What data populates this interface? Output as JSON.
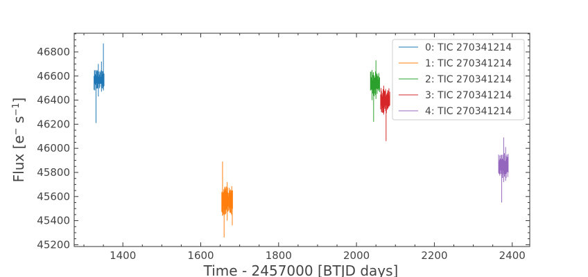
{
  "chart_data": {
    "type": "line",
    "xlabel": "Time - 2457000 [BTJD days]",
    "ylabel_main": "Flux [e",
    "ylabel_sup1": "−",
    "ylabel_mid": "s",
    "ylabel_sup2": "−1",
    "ylabel_end": "]",
    "xlim": [
      1275,
      2445
    ],
    "ylim": [
      45185,
      46955
    ],
    "xticks": [
      1400,
      1600,
      1800,
      2000,
      2200,
      2400
    ],
    "yticks": [
      45200,
      45400,
      45600,
      45800,
      46000,
      46200,
      46400,
      46600,
      46800
    ],
    "grid": false,
    "legend_position": "top-right",
    "series": [
      {
        "name": "0: TIC 270341214",
        "color": "#1f77b4",
        "x_range": [
          1326,
          1352
        ],
        "band": [
          46480,
          46650
        ],
        "spikes": [
          [
            1331,
            46210,
            46650
          ],
          [
            1337,
            46430,
            46700
          ],
          [
            1350,
            46480,
            46870
          ],
          [
            1345,
            46470,
            46720
          ]
        ]
      },
      {
        "name": "1: TIC 270341214",
        "color": "#ff7f0e",
        "x_range": [
          1654,
          1682
        ],
        "band": [
          45440,
          45690
        ],
        "spikes": [
          [
            1656,
            45440,
            45890
          ],
          [
            1660,
            45260,
            45620
          ],
          [
            1681,
            45360,
            45620
          ],
          [
            1668,
            45400,
            45720
          ]
        ]
      },
      {
        "name": "2: TIC 270341214",
        "color": "#2ca02c",
        "x_range": [
          2036,
          2060
        ],
        "band": [
          46430,
          46640
        ],
        "spikes": [
          [
            2044,
            46220,
            46600
          ],
          [
            2050,
            46410,
            46730
          ],
          [
            2040,
            46400,
            46650
          ]
        ]
      },
      {
        "name": "3: TIC 270341214",
        "color": "#d62728",
        "x_range": [
          2062,
          2086
        ],
        "band": [
          46290,
          46500
        ],
        "spikes": [
          [
            2076,
            46060,
            46400
          ],
          [
            2070,
            46280,
            46520
          ]
        ]
      },
      {
        "name": "4: TIC 270341214",
        "color": "#9467bd",
        "x_range": [
          2365,
          2390
        ],
        "band": [
          45750,
          45960
        ],
        "spikes": [
          [
            2373,
            45550,
            45900
          ],
          [
            2378,
            45720,
            46090
          ],
          [
            2383,
            45730,
            46010
          ]
        ]
      }
    ]
  }
}
